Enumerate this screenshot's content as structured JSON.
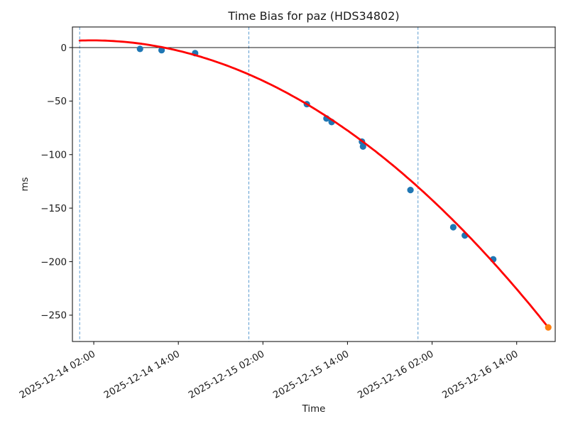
{
  "chart_data": {
    "type": "scatter",
    "title": "Time Bias for paz (HDS34802)",
    "xlabel": "Time",
    "ylabel": "ms",
    "x_unit": "hours since 2025-12-14 00:00",
    "xlim_hours": [
      -1.03,
      67.47
    ],
    "ylim_ms": [
      -274.6,
      19.2
    ],
    "grid": false,
    "legend": "none",
    "x_ticks": [
      {
        "t": 2,
        "label": "2025-12-14 02:00"
      },
      {
        "t": 14,
        "label": "2025-12-14 14:00"
      },
      {
        "t": 26,
        "label": "2025-12-15 02:00"
      },
      {
        "t": 38,
        "label": "2025-12-15 14:00"
      },
      {
        "t": 50,
        "label": "2025-12-16 02:00"
      },
      {
        "t": 62,
        "label": "2025-12-16 14:00"
      }
    ],
    "y_ticks": [
      {
        "v": 0,
        "label": "0"
      },
      {
        "v": -50,
        "label": "−50"
      },
      {
        "v": -100,
        "label": "−100"
      },
      {
        "v": -150,
        "label": "−150"
      },
      {
        "v": -200,
        "label": "−200"
      },
      {
        "v": -250,
        "label": "−250"
      }
    ],
    "day_boundary_vlines_hours": [
      0,
      24,
      48
    ],
    "zero_hline_ms": 0,
    "series": [
      {
        "name": "bias-observations",
        "type": "scatter",
        "color": "#1f77b4",
        "marker_radius": 4.6,
        "points_t_ms": [
          [
            8.56,
            -1.3
          ],
          [
            11.62,
            -2.5
          ],
          [
            16.38,
            -5.3
          ],
          [
            32.23,
            -52.9
          ],
          [
            35.01,
            -66.3
          ],
          [
            35.75,
            -69.6
          ],
          [
            40.05,
            -87.9
          ],
          [
            40.2,
            -92.5
          ],
          [
            46.93,
            -133.1
          ],
          [
            53.0,
            -167.8
          ],
          [
            54.65,
            -175.5
          ],
          [
            58.68,
            -197.8
          ]
        ]
      },
      {
        "name": "latest-observation",
        "type": "scatter",
        "color": "#ff7f0e",
        "marker_radius": 4.6,
        "points_t_ms": [
          [
            66.48,
            -261.4
          ]
        ]
      },
      {
        "name": "quadratic-fit",
        "type": "line",
        "color": "#ff0000",
        "line_width": 2.8,
        "poly_coeffs_a_b_c": [
          6.5,
          0.2153,
          -0.06385
        ],
        "t_domain": [
          0,
          66.48
        ]
      }
    ],
    "styles": {
      "vline_color": "#5b9bd0",
      "vline_dash": "4 2.6",
      "hline_color": "#1a1a1a",
      "axis_color": "#1a1a1a",
      "background": "#ffffff"
    }
  }
}
